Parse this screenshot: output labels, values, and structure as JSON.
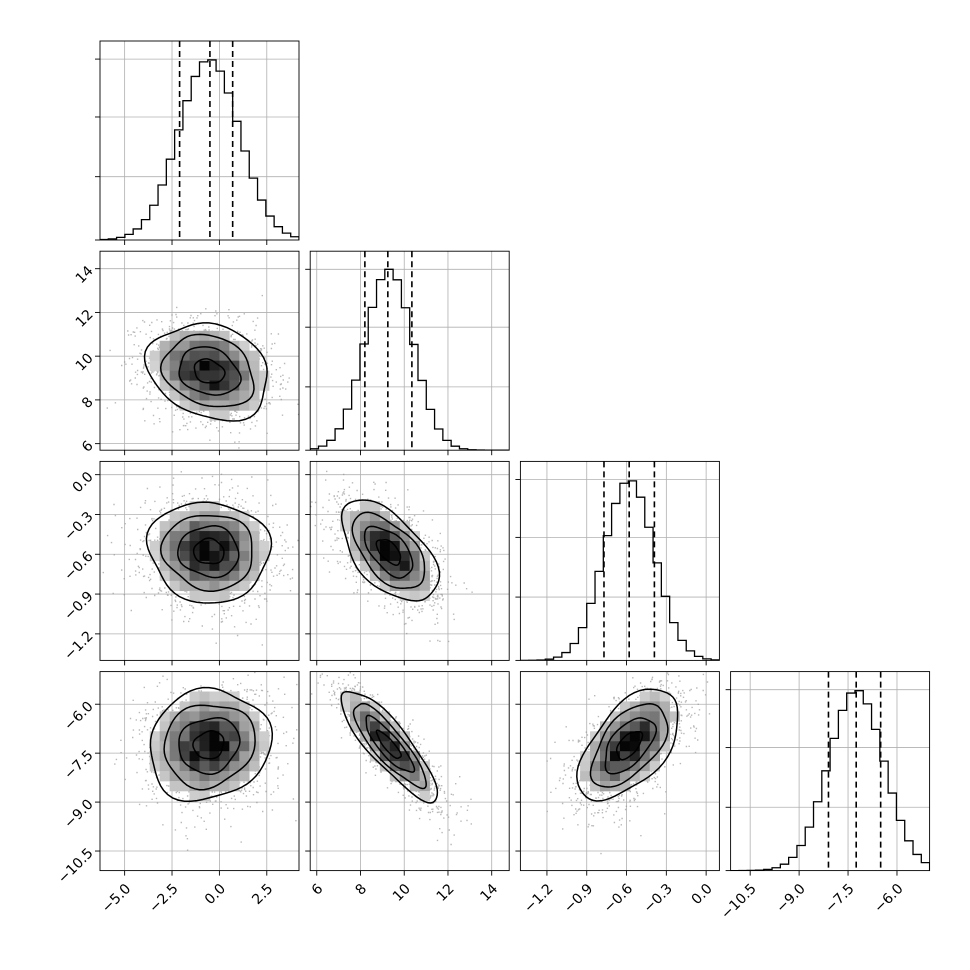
{
  "chart_data": {
    "type": "corner",
    "grid_on": true,
    "parameters": [
      {
        "range": [
          -6.3,
          4.2
        ],
        "ticks": [
          -5.0,
          -2.5,
          0.0,
          2.5
        ],
        "tick_labels": [
          "−5.0",
          "−2.5",
          "0.0",
          "2.5"
        ],
        "mean": -0.55,
        "sd": 1.6,
        "quantiles": [
          -2.1,
          -0.5,
          0.7
        ]
      },
      {
        "range": [
          5.7,
          14.8
        ],
        "ticks": [
          6,
          8,
          10,
          12,
          14
        ],
        "tick_labels": [
          "6",
          "8",
          "10",
          "12",
          "14"
        ],
        "mean": 9.3,
        "sd": 1.1,
        "quantiles": [
          8.2,
          9.25,
          10.35
        ]
      },
      {
        "range": [
          -1.4,
          0.1
        ],
        "ticks": [
          -1.2,
          -0.9,
          -0.6,
          -0.3,
          0.0
        ],
        "tick_labels": [
          "−1.2",
          "−0.9",
          "−0.6",
          "−0.3",
          "0.0"
        ],
        "mean": -0.58,
        "sd": 0.19,
        "quantiles": [
          -0.77,
          -0.58,
          -0.39
        ]
      },
      {
        "range": [
          -11.1,
          -5.0
        ],
        "ticks": [
          -10.5,
          -9.0,
          -7.5,
          -6.0
        ],
        "tick_labels": [
          "−10.5",
          "−9.0",
          "−7.5",
          "−6.0"
        ],
        "mean": -7.25,
        "sd": 0.85,
        "quantiles": [
          -8.1,
          -7.25,
          -6.5
        ]
      }
    ],
    "correlations": [
      [
        1.0,
        -0.2,
        -0.05,
        0.1
      ],
      [
        -0.2,
        1.0,
        -0.55,
        -0.85
      ],
      [
        -0.05,
        -0.55,
        1.0,
        0.55
      ],
      [
        0.1,
        -0.85,
        0.55,
        1.0
      ]
    ],
    "bins": 24,
    "samples_per_panel": 1600,
    "contour_levels_sigma": [
      0.5,
      1.0,
      1.5,
      2.0
    ]
  }
}
